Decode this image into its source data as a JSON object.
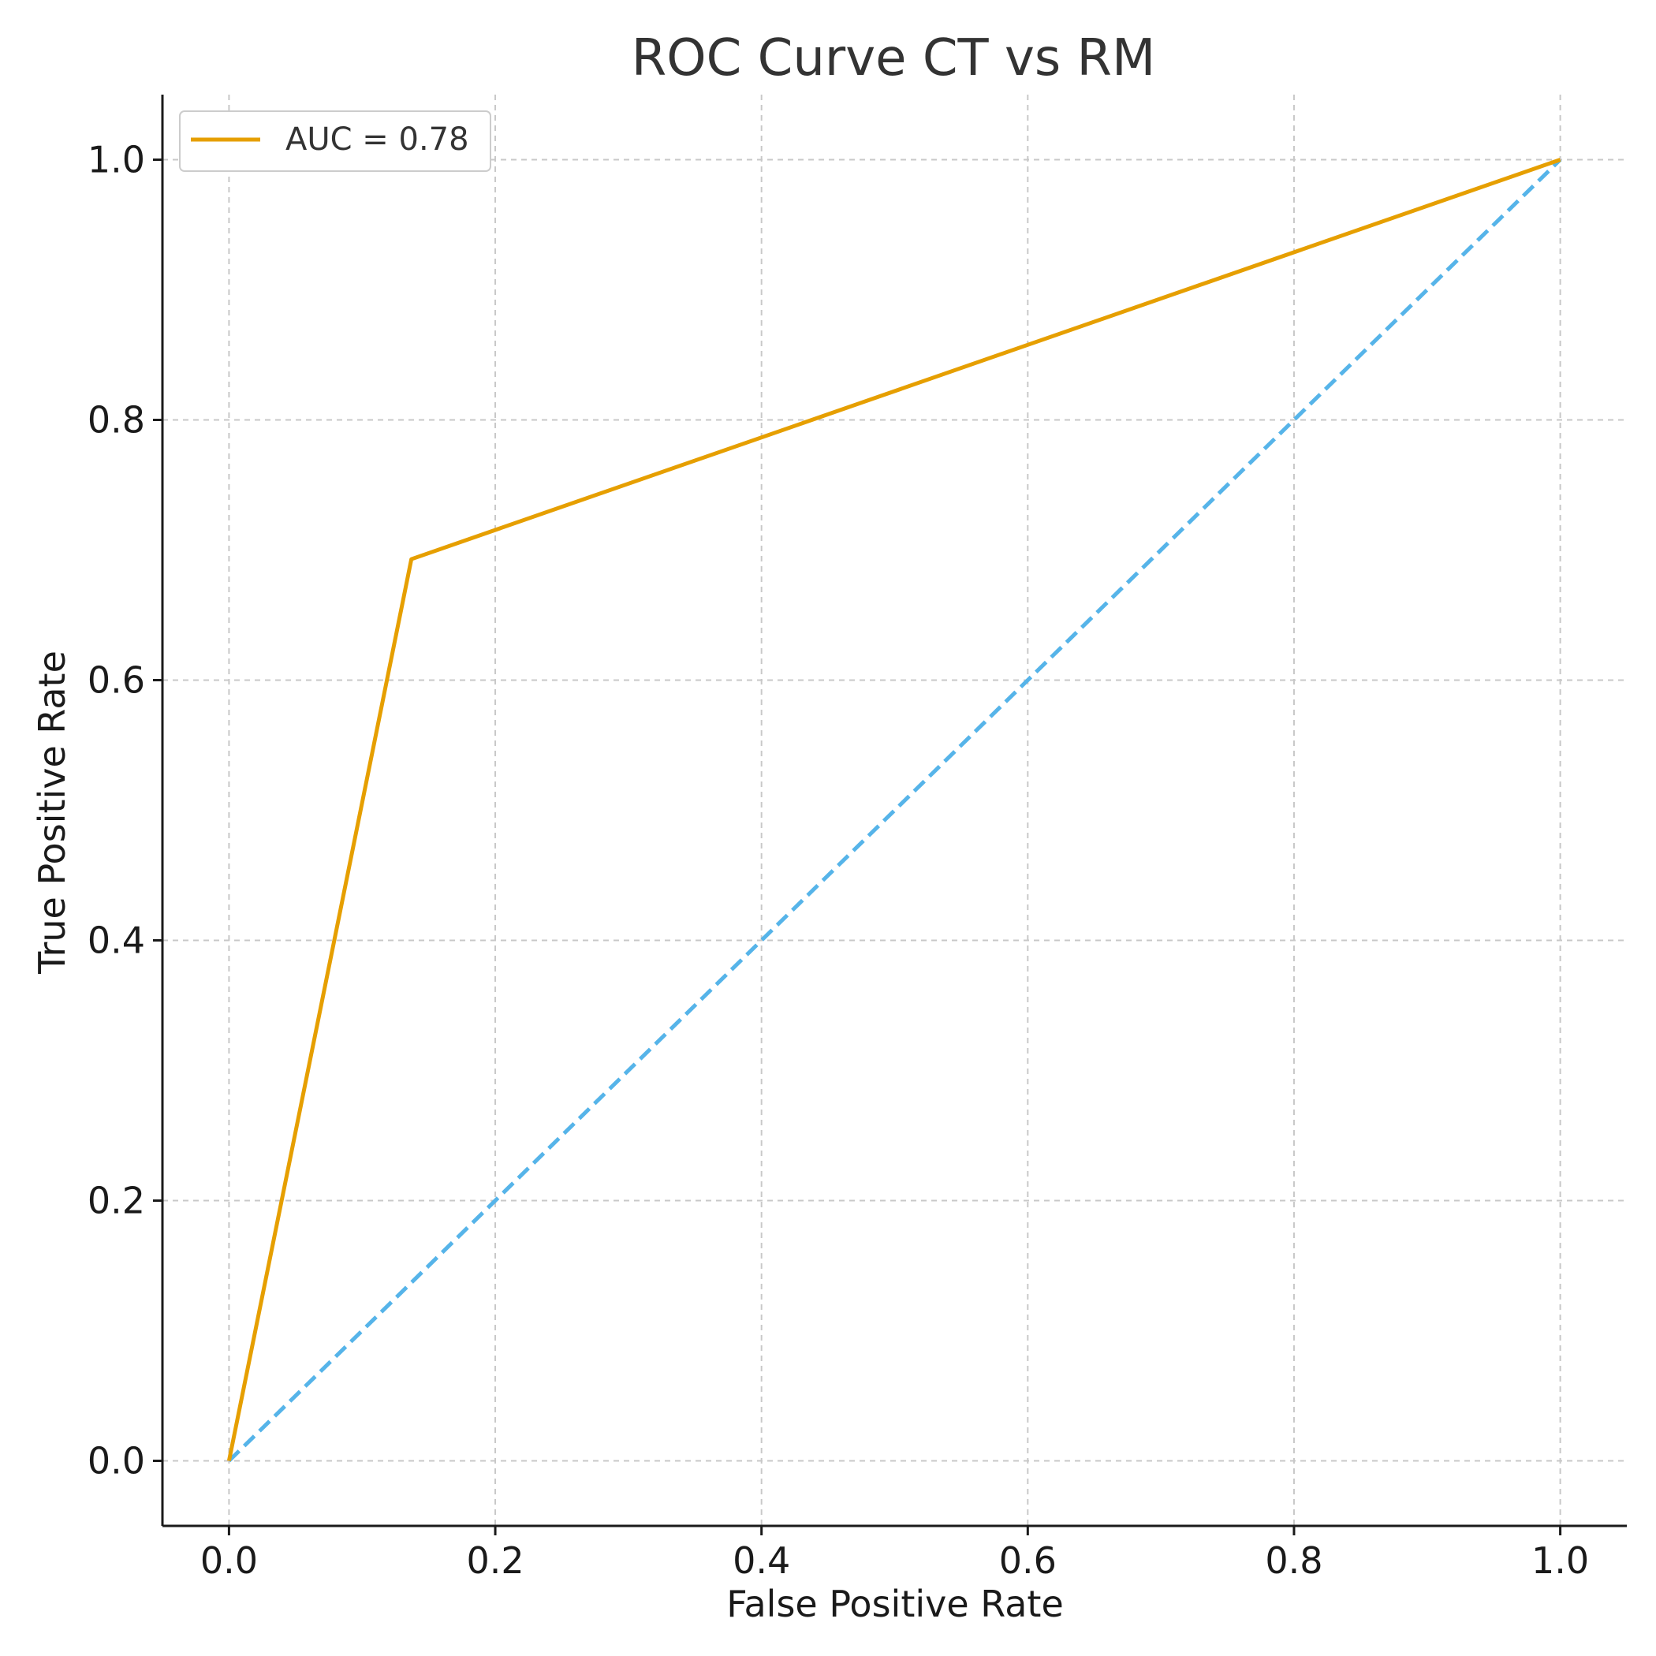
{
  "chart_data": {
    "type": "line",
    "title": "ROC Curve CT vs RM",
    "xlabel": "False Positive Rate",
    "ylabel": "True Positive Rate",
    "xlim": [
      -0.05,
      1.05
    ],
    "ylim": [
      -0.05,
      1.05
    ],
    "xticks": [
      0.0,
      0.2,
      0.4,
      0.6,
      0.8,
      1.0
    ],
    "yticks": [
      0.0,
      0.2,
      0.4,
      0.6,
      0.8,
      1.0
    ],
    "xtick_labels": [
      "0.0",
      "0.2",
      "0.4",
      "0.6",
      "0.8",
      "1.0"
    ],
    "ytick_labels": [
      "0.0",
      "0.2",
      "0.4",
      "0.6",
      "0.8",
      "1.0"
    ],
    "grid": true,
    "legend_position": "top-left",
    "series": [
      {
        "name": "AUC = 0.78",
        "style": "solid",
        "color": "#E69F00",
        "x": [
          0.0,
          0.137,
          1.0
        ],
        "y": [
          0.0,
          0.693,
          1.0
        ]
      },
      {
        "name": "",
        "style": "dashed",
        "color": "#56B4E9",
        "x": [
          0.0,
          1.0
        ],
        "y": [
          0.0,
          1.0
        ]
      }
    ]
  }
}
